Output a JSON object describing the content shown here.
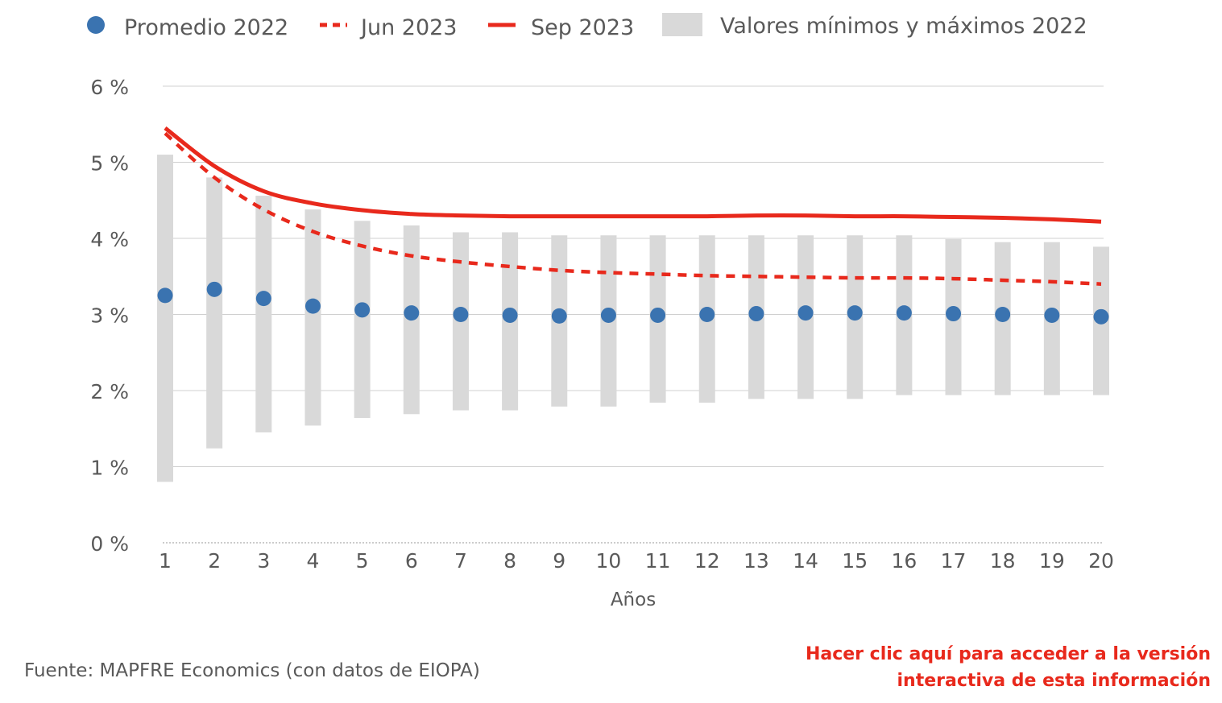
{
  "colors": {
    "promedio": "#3a73b0",
    "jun": "#e8291c",
    "sep": "#e8291c",
    "range": "#d9d9d9",
    "grid": "#d0d0d0",
    "text": "#595959",
    "link": "#e8291c"
  },
  "chart_data": {
    "type": "line",
    "xlabel": "Años",
    "ylabel": "",
    "ylim": [
      0,
      6
    ],
    "grid": true,
    "legend_position": "top",
    "x": [
      1,
      2,
      3,
      4,
      5,
      6,
      7,
      8,
      9,
      10,
      11,
      12,
      13,
      14,
      15,
      16,
      17,
      18,
      19,
      20
    ],
    "x_tick_labels": [
      "1",
      "2",
      "3",
      "4",
      "5",
      "6",
      "7",
      "8",
      "9",
      "10",
      "11",
      "12",
      "13",
      "14",
      "15",
      "16",
      "17",
      "18",
      "19",
      "20"
    ],
    "y_ticks": [
      0,
      1,
      2,
      3,
      4,
      5,
      6
    ],
    "y_tick_labels": [
      "0 %",
      "1 %",
      "2 %",
      "3 %",
      "4 %",
      "5 %",
      "6 %"
    ],
    "legend": [
      "Promedio 2022",
      "Jun 2023",
      "Sep 2023",
      "Valores mínimos y máximos 2022"
    ],
    "series": [
      {
        "name": "Promedio 2022",
        "style": "dots",
        "values": [
          3.25,
          3.33,
          3.21,
          3.11,
          3.06,
          3.02,
          3.0,
          2.99,
          2.98,
          2.99,
          2.99,
          3.0,
          3.01,
          3.02,
          3.02,
          3.02,
          3.01,
          3.0,
          2.99,
          2.97
        ]
      },
      {
        "name": "Jun 2023",
        "style": "dashed",
        "values": [
          5.38,
          4.8,
          4.38,
          4.09,
          3.9,
          3.77,
          3.69,
          3.63,
          3.58,
          3.55,
          3.53,
          3.51,
          3.5,
          3.49,
          3.48,
          3.48,
          3.47,
          3.45,
          3.43,
          3.4
        ]
      },
      {
        "name": "Sep 2023",
        "style": "solid",
        "values": [
          5.45,
          4.95,
          4.62,
          4.46,
          4.37,
          4.32,
          4.3,
          4.29,
          4.29,
          4.29,
          4.29,
          4.29,
          4.3,
          4.3,
          4.29,
          4.29,
          4.28,
          4.27,
          4.25,
          4.22
        ]
      },
      {
        "name": "Valores mínimos y máximos 2022",
        "style": "range-bars",
        "min": [
          0.8,
          1.24,
          1.45,
          1.54,
          1.64,
          1.69,
          1.74,
          1.74,
          1.79,
          1.79,
          1.84,
          1.84,
          1.89,
          1.89,
          1.89,
          1.94,
          1.94,
          1.94,
          1.94,
          1.94
        ],
        "max": [
          5.1,
          4.8,
          4.56,
          4.38,
          4.23,
          4.17,
          4.08,
          4.08,
          4.04,
          4.04,
          4.04,
          4.04,
          4.04,
          4.04,
          4.04,
          4.04,
          3.99,
          3.95,
          3.95,
          3.89
        ]
      }
    ]
  },
  "source_text": "Fuente: MAPFRE Economics (con datos de EIOPA)",
  "interactive_link": {
    "line1": "Hacer clic aquí para acceder a la versión",
    "line2": "interactiva de esta información"
  }
}
